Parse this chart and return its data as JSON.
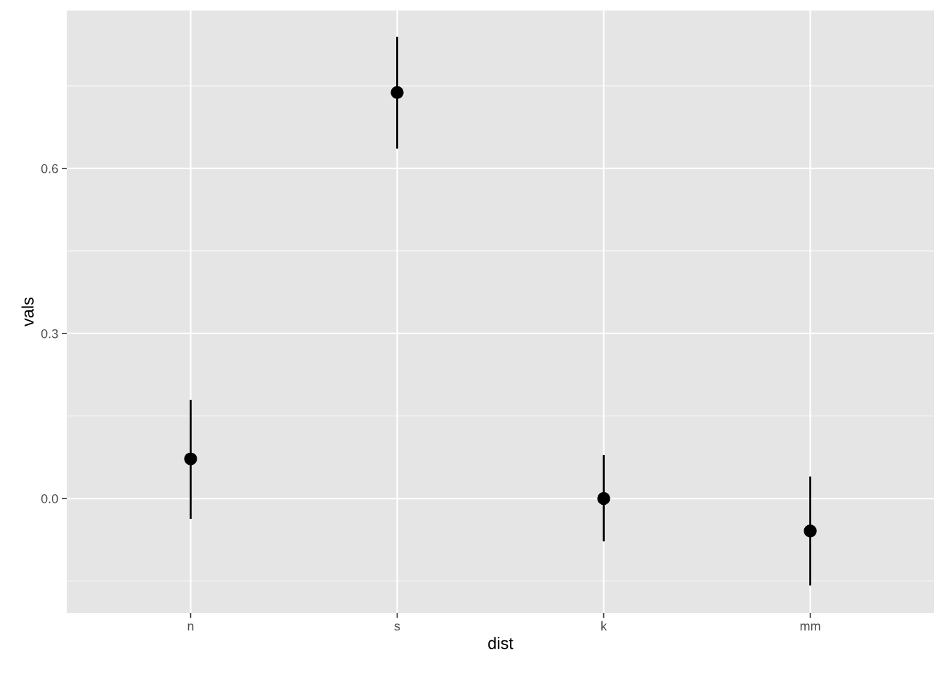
{
  "chart_data": {
    "type": "scatter",
    "xlabel": "dist",
    "ylabel": "vals",
    "categories": [
      "n",
      "s",
      "k",
      "mm"
    ],
    "series": [
      {
        "color": "#000000",
        "values": [
          0.072,
          0.738,
          0.0,
          -0.059
        ],
        "errors": [
          [
            -0.037,
            0.179
          ],
          [
            0.636,
            0.839
          ],
          [
            -0.078,
            0.079
          ],
          [
            -0.158,
            0.04
          ]
        ]
      }
    ],
    "ylim": [
      -0.208,
      0.887
    ],
    "yticks": [
      {
        "value": 0.0,
        "label": "0.0"
      },
      {
        "value": 0.3,
        "label": "0.3"
      },
      {
        "value": 0.6,
        "label": "0.6"
      }
    ],
    "grid": true,
    "marker": "circle"
  }
}
